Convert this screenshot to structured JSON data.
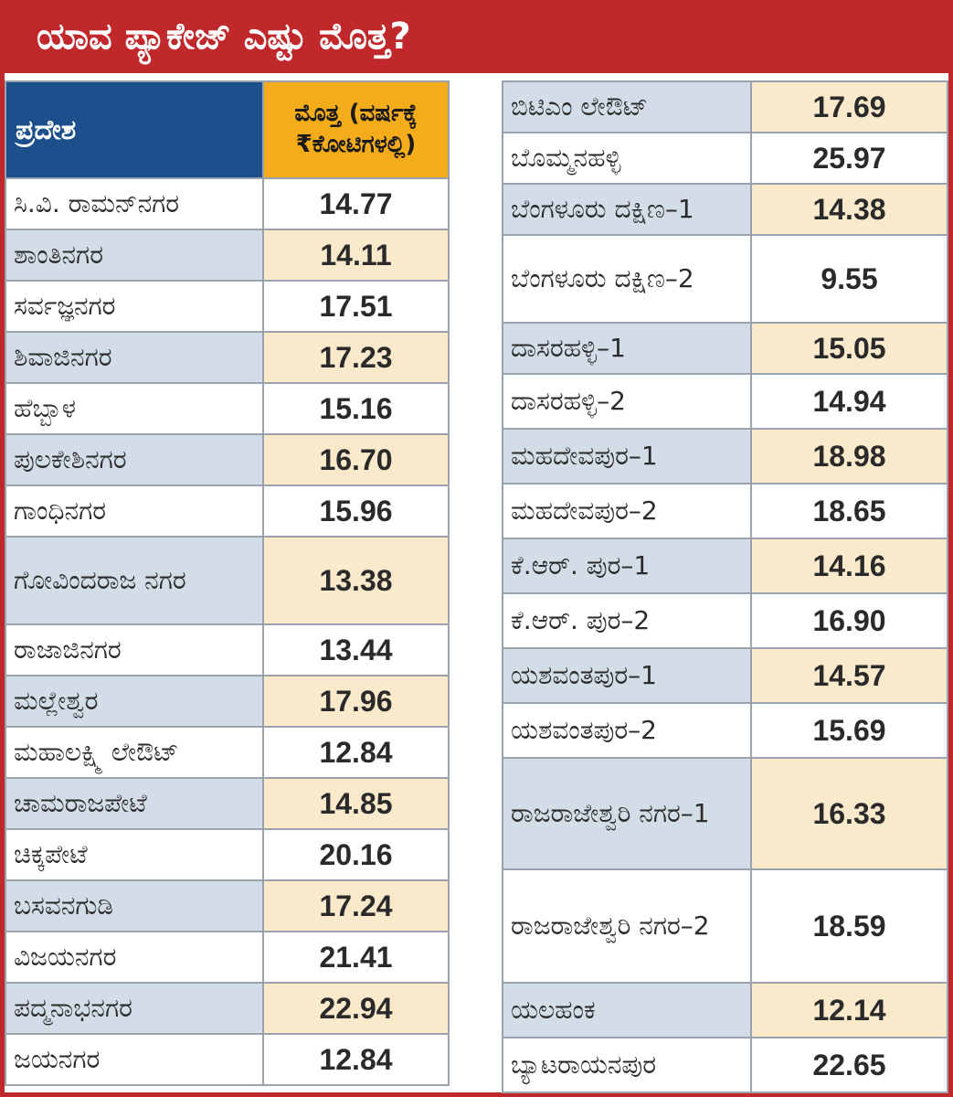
{
  "title": "ಯಾವ ಪ್ಯಾಕೇಜ್ ಎಷ್ಟು ಮೊತ್ತ?",
  "chart_data": {
    "type": "table",
    "columns": [
      "ಪ್ರದೇಶ",
      "ಮೊತ್ತ (ವರ್ಷಕ್ಕೆ ₹ಕೋಟಿಗಳಲ್ಲಿ)"
    ],
    "header_region": "ಪ್ರದೇಶ",
    "header_value_line1": "ಮೊತ್ತ (ವರ್ಷಕ್ಕೆ",
    "header_value_line2": "₹ಕೋಟಿಗಳಲ್ಲಿ)",
    "left_rows": [
      {
        "region": "ಸಿ.ವಿ. ರಾಮನ್‌ನಗರ",
        "value": "14.77"
      },
      {
        "region": "ಶಾಂತಿನಗರ",
        "value": "14.11"
      },
      {
        "region": "ಸರ್ವಜ್ಞನಗರ",
        "value": "17.51"
      },
      {
        "region": "ಶಿವಾಜಿನಗರ",
        "value": "17.23"
      },
      {
        "region": "ಹೆಬ್ಬಾಳ",
        "value": "15.16"
      },
      {
        "region": "ಪುಲಕೇಶಿನಗರ",
        "value": "16.70"
      },
      {
        "region": "ಗಾಂಧಿನಗರ",
        "value": "15.96"
      },
      {
        "region": "ಗೋವಿಂದರಾಜ ನಗರ",
        "value": "13.38"
      },
      {
        "region": "ರಾಜಾಜಿನಗರ",
        "value": "13.44"
      },
      {
        "region": "ಮಲ್ಲೇಶ್ವರ",
        "value": "17.96"
      },
      {
        "region": "ಮಹಾಲಕ್ಷ್ಮಿ ಲೇಔಟ್",
        "value": "12.84"
      },
      {
        "region": "ಚಾಮರಾಜಪೇಟೆ",
        "value": "14.85"
      },
      {
        "region": "ಚಿಕ್ಕಪೇಟೆ",
        "value": "20.16"
      },
      {
        "region": "ಬಸವನಗುಡಿ",
        "value": "17.24"
      },
      {
        "region": "ವಿಜಯನಗರ",
        "value": "21.41"
      },
      {
        "region": "ಪದ್ಮನಾಭನಗರ",
        "value": "22.94"
      },
      {
        "region": "ಜಯನಗರ",
        "value": "12.84"
      }
    ],
    "right_rows": [
      {
        "region": "ಬಿಟಿಎಂ ಲೇಔಟ್",
        "value": "17.69"
      },
      {
        "region": "ಬೊಮ್ಮನಹಳ್ಳಿ",
        "value": "25.97"
      },
      {
        "region": "ಬೆಂಗಳೂರು ದಕ್ಷಿಣ–1",
        "value": "14.38"
      },
      {
        "region": "ಬೆಂಗಳೂರು ದಕ್ಷಿಣ–2",
        "value": "9.55"
      },
      {
        "region": "ದಾಸರಹಳ್ಳಿ–1",
        "value": "15.05"
      },
      {
        "region": "ದಾಸರಹಳ್ಳಿ–2",
        "value": "14.94"
      },
      {
        "region": "ಮಹದೇವಪುರ–1",
        "value": "18.98"
      },
      {
        "region": "ಮಹದೇವಪುರ–2",
        "value": "18.65"
      },
      {
        "region": "ಕೆ.ಆರ್. ಪುರ–1",
        "value": "14.16"
      },
      {
        "region": "ಕೆ.ಆರ್. ಪುರ–2",
        "value": "16.90"
      },
      {
        "region": "ಯಶವಂತಪುರ–1",
        "value": "14.57"
      },
      {
        "region": "ಯಶವಂತಪುರ–2",
        "value": "15.69"
      },
      {
        "region": "ರಾಜರಾಜೇಶ್ವರಿ ನಗರ–1",
        "value": "16.33"
      },
      {
        "region": "ರಾಜರಾಜೇಶ್ವರಿ ನಗರ–2",
        "value": "18.59"
      },
      {
        "region": "ಯಲಹಂಕ",
        "value": "12.14"
      },
      {
        "region": "ಬ್ಯಾಟರಾಯನಪುರ",
        "value": "22.65"
      }
    ]
  },
  "colors": {
    "title_bg": "#c0282c",
    "header_region_bg": "#1d4f8c",
    "header_value_bg": "#f4ac1a",
    "shade_region": "#d3dde8",
    "shade_value": "#fbe9cc"
  }
}
